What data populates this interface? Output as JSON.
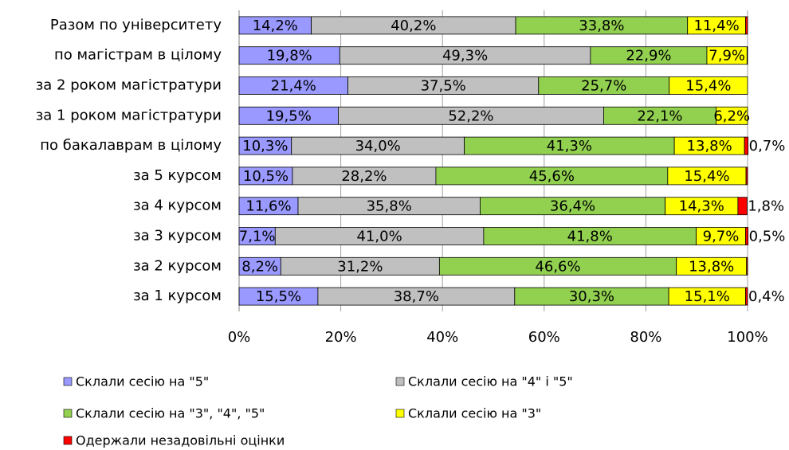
{
  "chart_data": {
    "type": "stacked_bar_horizontal",
    "categories": [
      "Разом по університету",
      "по магістрам в цілому",
      "за 2 роком магістратури",
      "за 1 роком магістратури",
      "по бакалаврам в цілому",
      "за 5 курсом",
      "за 4 курсом",
      "за 3 курсом",
      "за 2 курсом",
      "за 1 курсом"
    ],
    "series": [
      {
        "name": "Склали сесію на \"5\"",
        "color": "#9999ff",
        "values": [
          14.2,
          19.8,
          21.4,
          19.5,
          10.3,
          10.5,
          11.6,
          7.1,
          8.2,
          15.5
        ],
        "value_labels": [
          "14,2%",
          "19,8%",
          "21,4%",
          "19,5%",
          "10,3%",
          "10,5%",
          "11,6%",
          "7,1%",
          "8,2%",
          "15,5%"
        ]
      },
      {
        "name": "Склали сесію на \"4\" і \"5\"",
        "color": "#c0c0c0",
        "values": [
          40.2,
          49.3,
          37.5,
          52.2,
          34.0,
          28.2,
          35.8,
          41.0,
          31.2,
          38.7
        ],
        "value_labels": [
          "40,2%",
          "49,3%",
          "37,5%",
          "52,2%",
          "34,0%",
          "28,2%",
          "35,8%",
          "41,0%",
          "31,2%",
          "38,7%"
        ]
      },
      {
        "name": "Склали сесію на \"3\", \"4\", \"5\"",
        "color": "#92d050",
        "values": [
          33.8,
          22.9,
          25.7,
          22.1,
          41.3,
          45.6,
          36.4,
          41.8,
          46.6,
          30.3
        ],
        "value_labels": [
          "33,8%",
          "22,9%",
          "25,7%",
          "22,1%",
          "41,3%",
          "45,6%",
          "36,4%",
          "41,8%",
          "46,6%",
          "30,3%"
        ]
      },
      {
        "name": "Склали сесію на \"3\"",
        "color": "#ffff00",
        "values": [
          11.4,
          7.9,
          15.4,
          6.2,
          13.8,
          15.4,
          14.3,
          9.7,
          13.8,
          15.1
        ],
        "value_labels": [
          "11,4%",
          "7,9%",
          "15,4%",
          "6,2%",
          "13,8%",
          "15,4%",
          "14,3%",
          "9,7%",
          "13,8%",
          "15,1%"
        ]
      },
      {
        "name": "Одержали незадовільні оцінки",
        "color": "#ff0000",
        "values": [
          0.4,
          0.1,
          0,
          0,
          0.7,
          0.3,
          1.8,
          0.5,
          0.2,
          0.4
        ],
        "value_labels": [
          null,
          null,
          null,
          null,
          "0,7%",
          null,
          "1,8%",
          "0,5%",
          null,
          "0,4%"
        ]
      }
    ],
    "xlim": [
      0,
      100
    ],
    "xticks": [
      {
        "value": 0,
        "label": "0%"
      },
      {
        "value": 20,
        "label": "20%"
      },
      {
        "value": 40,
        "label": "40%"
      },
      {
        "value": 60,
        "label": "60%"
      },
      {
        "value": 80,
        "label": "80%"
      },
      {
        "value": 100,
        "label": "100%"
      }
    ],
    "grid": true
  }
}
